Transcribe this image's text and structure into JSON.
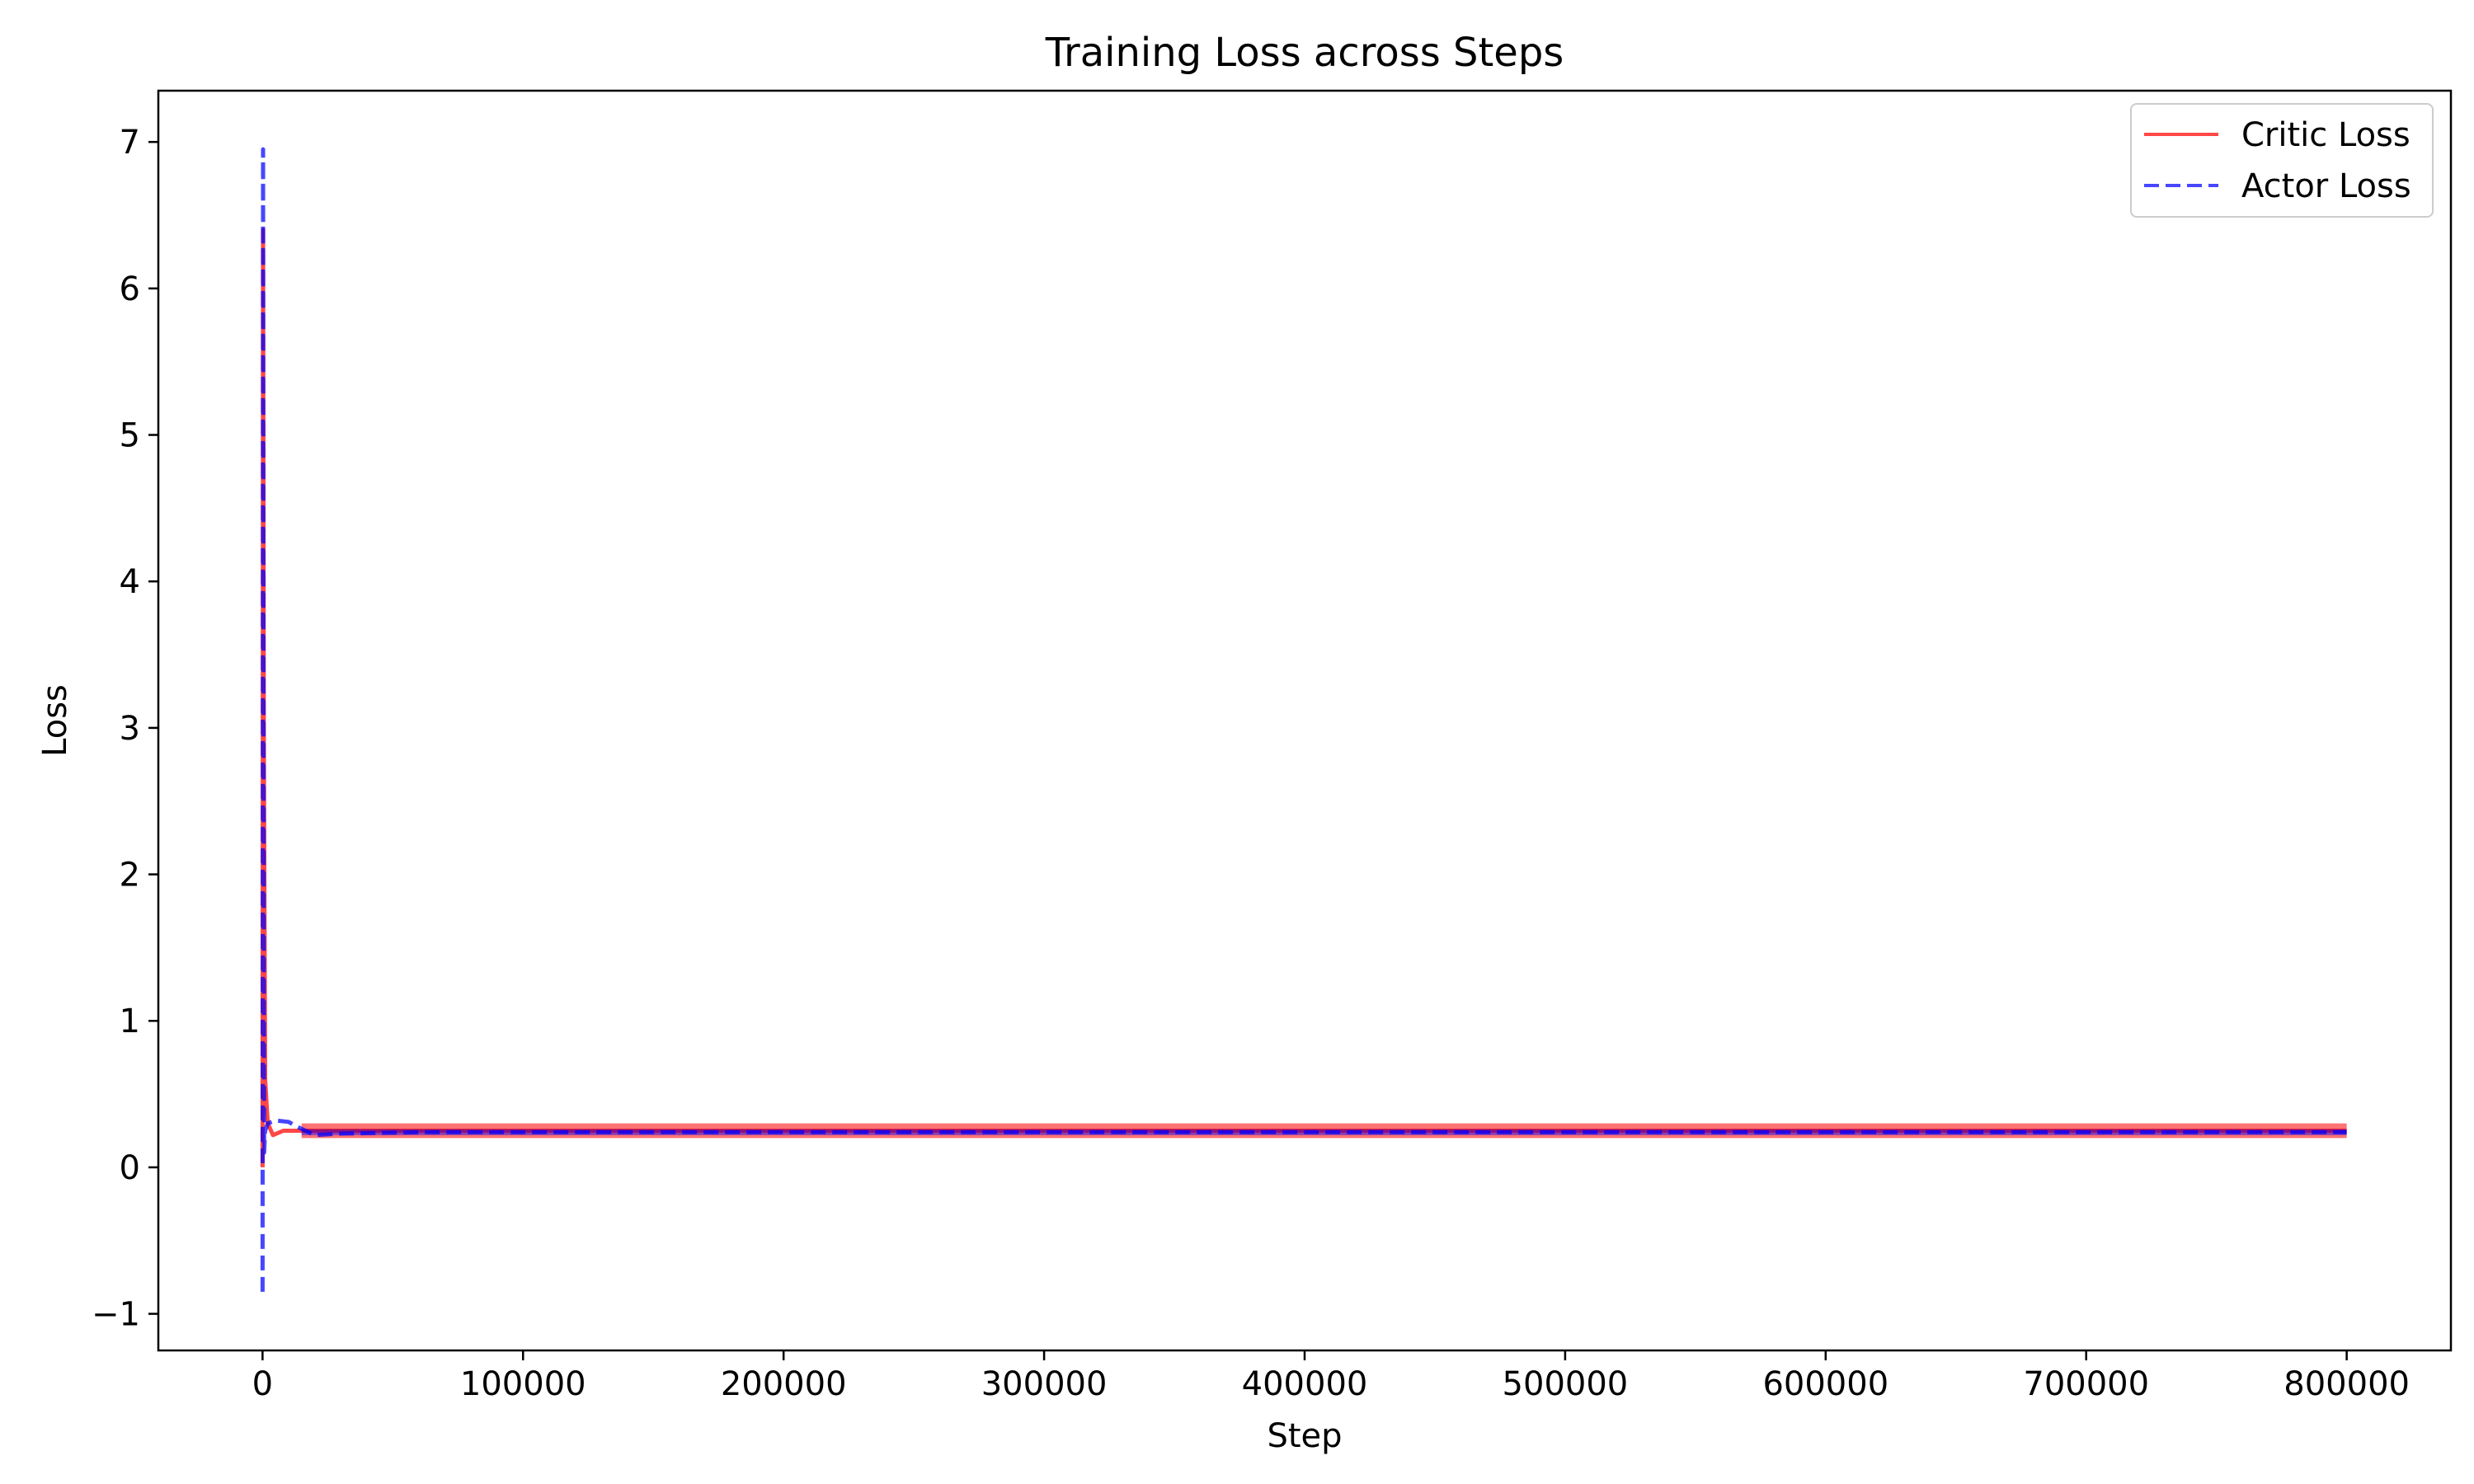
{
  "chart_data": {
    "type": "line",
    "title": "Training Loss across Steps",
    "xlabel": "Step",
    "ylabel": "Loss",
    "xlim": [
      -40000,
      840000
    ],
    "ylim": [
      -1.25,
      7.35
    ],
    "xticks": [
      0,
      100000,
      200000,
      300000,
      400000,
      500000,
      600000,
      700000,
      800000
    ],
    "xtick_labels": [
      "0",
      "100000",
      "200000",
      "300000",
      "400000",
      "500000",
      "600000",
      "700000",
      "800000"
    ],
    "yticks": [
      -1,
      0,
      1,
      2,
      3,
      4,
      5,
      6,
      7
    ],
    "ytick_labels": [
      "−1",
      "0",
      "1",
      "2",
      "3",
      "4",
      "5",
      "6",
      "7"
    ],
    "grid": false,
    "legend_position": "upper right",
    "series": [
      {
        "name": "Critic Loss",
        "color": "#ff0000",
        "line_style": "solid",
        "x": [
          0,
          200,
          500,
          1000,
          2000,
          4000,
          8000,
          15000,
          30000,
          60000,
          100000,
          200000,
          300000,
          400000,
          500000,
          600000,
          700000,
          800000
        ],
        "y": [
          0.0,
          6.4,
          3.0,
          0.6,
          0.3,
          0.22,
          0.25,
          0.25,
          0.25,
          0.25,
          0.25,
          0.25,
          0.25,
          0.25,
          0.25,
          0.25,
          0.25,
          0.25
        ],
        "band": [
          0.2,
          0.3
        ]
      },
      {
        "name": "Actor Loss",
        "color": "#0000ff",
        "line_style": "dashed",
        "x": [
          0,
          200,
          400,
          600,
          1000,
          2000,
          5000,
          10000,
          13000,
          20000,
          30000,
          60000,
          100000,
          200000,
          300000,
          400000,
          500000,
          600000,
          700000,
          800000
        ],
        "y": [
          -0.85,
          6.95,
          3.0,
          0.1,
          0.25,
          0.3,
          0.32,
          0.31,
          0.28,
          0.22,
          0.23,
          0.24,
          0.24,
          0.24,
          0.24,
          0.24,
          0.24,
          0.24,
          0.24,
          0.24
        ],
        "band": [
          0.22,
          0.26
        ]
      }
    ]
  }
}
